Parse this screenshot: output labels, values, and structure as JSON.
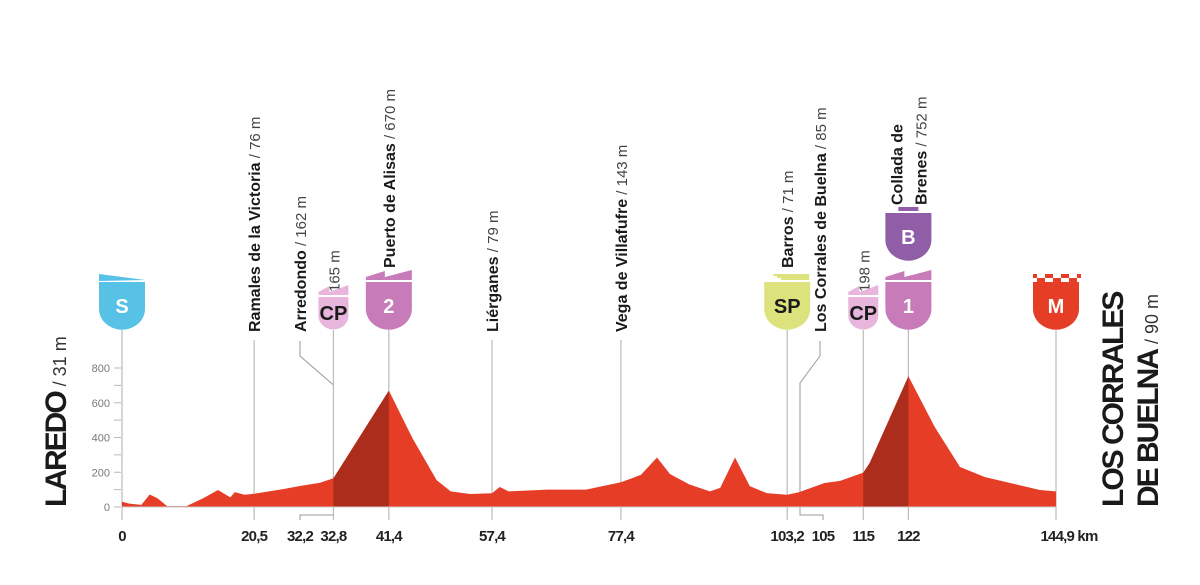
{
  "chart_data": {
    "type": "area",
    "title": "",
    "xlabel": "",
    "ylabel": "",
    "x_unit": "km",
    "xlim": [
      0,
      144.9
    ],
    "ylim": [
      0,
      800
    ],
    "y_ticks": [
      0,
      200,
      400,
      600,
      800
    ],
    "grid": false,
    "colors": {
      "profile": "#e63d27",
      "climb": "#ad2d1c",
      "line": "#bbbbbb"
    },
    "profile": [
      [
        0,
        31
      ],
      [
        1,
        20
      ],
      [
        3,
        12
      ],
      [
        4.3,
        72
      ],
      [
        5.5,
        50
      ],
      [
        7,
        5
      ],
      [
        10,
        5
      ],
      [
        12.6,
        50
      ],
      [
        14.9,
        98
      ],
      [
        16.8,
        55
      ],
      [
        17.5,
        86
      ],
      [
        19,
        70
      ],
      [
        20.5,
        76
      ],
      [
        25,
        103
      ],
      [
        27.6,
        121
      ],
      [
        30.7,
        140
      ],
      [
        32.8,
        165
      ],
      [
        41.4,
        670
      ],
      [
        45,
        400
      ],
      [
        48.8,
        155
      ],
      [
        51,
        90
      ],
      [
        54,
        75
      ],
      [
        57.4,
        79
      ],
      [
        58.6,
        115
      ],
      [
        60,
        90
      ],
      [
        66,
        100
      ],
      [
        72,
        100
      ],
      [
        77.4,
        143
      ],
      [
        80.5,
        185
      ],
      [
        83,
        285
      ],
      [
        85,
        190
      ],
      [
        88,
        130
      ],
      [
        91.2,
        90
      ],
      [
        92.8,
        110
      ],
      [
        95.1,
        285
      ],
      [
        97.4,
        120
      ],
      [
        100,
        80
      ],
      [
        103.2,
        71
      ],
      [
        105,
        85
      ],
      [
        109,
        138
      ],
      [
        111.4,
        150
      ],
      [
        115,
        198
      ],
      [
        116,
        253
      ],
      [
        122,
        752
      ],
      [
        126.1,
        460
      ],
      [
        130,
        230
      ],
      [
        133.9,
        172
      ],
      [
        137.8,
        138
      ],
      [
        142.4,
        98
      ],
      [
        144.9,
        90
      ]
    ],
    "climbs_shaded": [
      [
        32.8,
        41.4
      ],
      [
        115,
        122
      ]
    ],
    "km_ticks": [
      "0",
      "20,5",
      "32,2",
      "32,8",
      "41,4",
      "57,4",
      "77,4",
      "103,2",
      "105",
      "115",
      "122",
      "144,9 km"
    ],
    "km_tick_values": [
      0,
      20.5,
      32.2,
      32.8,
      41.4,
      57.4,
      77.4,
      103.2,
      105,
      115,
      122,
      144.9
    ],
    "start": {
      "name": "LAREDO",
      "elev": "/ 31 m"
    },
    "finish": {
      "name_line1": "LOS CORRALES",
      "name_line2": "DE BUELNA",
      "elev": "/ 90 m"
    },
    "points": [
      {
        "km": 0,
        "badge": "S",
        "badge_type": "start",
        "color": "#58c2e6"
      },
      {
        "km": 20.5,
        "name": "Ramales de la Victoria",
        "elev": " / 76 m"
      },
      {
        "km": 32.2,
        "name": "Arredondo",
        "elev": " / 162 m",
        "leader_to": 32.8
      },
      {
        "km": 32.8,
        "elev": "165 m",
        "badge": "CP",
        "badge_type": "small",
        "color": "#e8b6dc"
      },
      {
        "km": 41.4,
        "name": "Puerto de Alisas",
        "elev": " / 670 m",
        "badge": "2",
        "badge_type": "climb",
        "color": "#c77bb8"
      },
      {
        "km": 57.4,
        "name": "Liérganes",
        "elev": " / 79 m"
      },
      {
        "km": 77.4,
        "name": "Vega de Villafufre",
        "elev": " / 143 m"
      },
      {
        "km": 103.2,
        "name": "Barros",
        "elev": " / 71 m",
        "badge": "SP",
        "badge_type": "sprint",
        "color": "#dde37c"
      },
      {
        "km": 105,
        "name": "Los Corrales de Buelna",
        "elev": " / 85 m",
        "leader_to": 105
      },
      {
        "km": 115,
        "elev": "198 m",
        "badge": "CP",
        "badge_type": "small",
        "color": "#e8b6dc"
      },
      {
        "km": 122,
        "name": "Collada de",
        "name2": "Brenes",
        "elev": " / 752 m",
        "badge": "1",
        "badge_type": "climb",
        "color": "#c77bb8",
        "badge2": "B",
        "badge2_color": "#8f5ea6"
      },
      {
        "km": 144.9,
        "badge": "M",
        "badge_type": "finish",
        "color": "#e63d27"
      }
    ]
  }
}
